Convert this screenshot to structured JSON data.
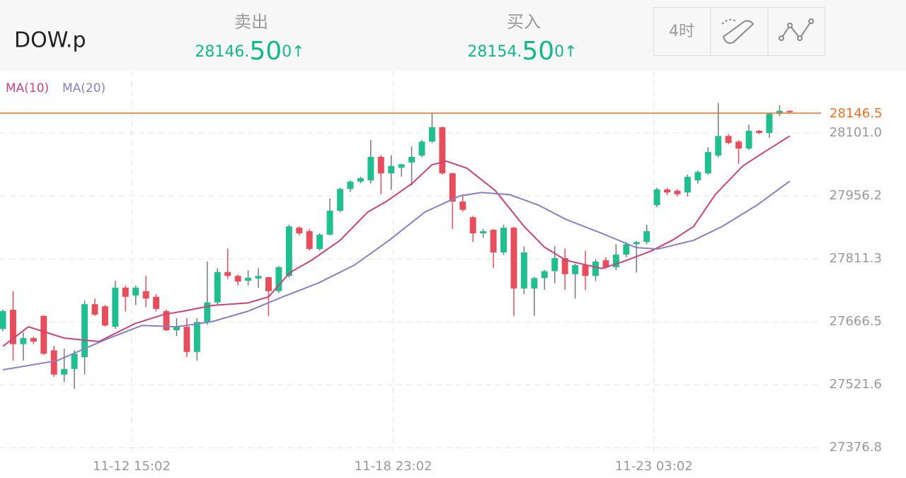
{
  "header": {
    "symbol": "DOW.p",
    "bid": {
      "label": "卖出",
      "price_head": "28146.",
      "price_big": "50",
      "price_tail": "0",
      "arrow": "↑"
    },
    "ask": {
      "label": "买入",
      "price_head": "28154.",
      "price_big": "50",
      "price_tail": "0",
      "arrow": "↑"
    },
    "timeframe": "4时"
  },
  "chart_data": {
    "type": "candlestick",
    "up_color": "#1fbf8f",
    "down_color": "#e84d5b",
    "candles": [
      {
        "o": 27650,
        "h": 27695,
        "l": 27645,
        "c": 27691
      },
      {
        "o": 27694,
        "h": 27737,
        "l": 27577,
        "c": 27615
      },
      {
        "o": 27615,
        "h": 27642,
        "l": 27577,
        "c": 27629
      },
      {
        "o": 27629,
        "h": 27632,
        "l": 27615,
        "c": 27621
      },
      {
        "o": 27680,
        "h": 27682,
        "l": 27590,
        "c": 27593
      },
      {
        "o": 27601,
        "h": 27611,
        "l": 27540,
        "c": 27545
      },
      {
        "o": 27545,
        "h": 27605,
        "l": 27528,
        "c": 27558
      },
      {
        "o": 27558,
        "h": 27601,
        "l": 27512,
        "c": 27593
      },
      {
        "o": 27585,
        "h": 27715,
        "l": 27545,
        "c": 27707
      },
      {
        "o": 27707,
        "h": 27720,
        "l": 27680,
        "c": 27683
      },
      {
        "o": 27702,
        "h": 27705,
        "l": 27655,
        "c": 27658
      },
      {
        "o": 27655,
        "h": 27761,
        "l": 27650,
        "c": 27745
      },
      {
        "o": 27745,
        "h": 27750,
        "l": 27690,
        "c": 27724
      },
      {
        "o": 27727,
        "h": 27750,
        "l": 27705,
        "c": 27745
      },
      {
        "o": 27737,
        "h": 27772,
        "l": 27700,
        "c": 27720
      },
      {
        "o": 27724,
        "h": 27730,
        "l": 27690,
        "c": 27696
      },
      {
        "o": 27691,
        "h": 27695,
        "l": 27645,
        "c": 27647
      },
      {
        "o": 27647,
        "h": 27675,
        "l": 27634,
        "c": 27655
      },
      {
        "o": 27655,
        "h": 27675,
        "l": 27585,
        "c": 27597
      },
      {
        "o": 27597,
        "h": 27675,
        "l": 27577,
        "c": 27666
      },
      {
        "o": 27666,
        "h": 27805,
        "l": 27660,
        "c": 27711
      },
      {
        "o": 27711,
        "h": 27790,
        "l": 27705,
        "c": 27781
      },
      {
        "o": 27781,
        "h": 27835,
        "l": 27765,
        "c": 27772
      },
      {
        "o": 27772,
        "h": 27775,
        "l": 27750,
        "c": 27759
      },
      {
        "o": 27761,
        "h": 27785,
        "l": 27750,
        "c": 27768
      },
      {
        "o": 27766,
        "h": 27790,
        "l": 27745,
        "c": 27772
      },
      {
        "o": 27769,
        "h": 27770,
        "l": 27680,
        "c": 27737
      },
      {
        "o": 27737,
        "h": 27795,
        "l": 27733,
        "c": 27792
      },
      {
        "o": 27772,
        "h": 27890,
        "l": 27768,
        "c": 27886
      },
      {
        "o": 27883,
        "h": 27886,
        "l": 27865,
        "c": 27870
      },
      {
        "o": 27875,
        "h": 27880,
        "l": 27830,
        "c": 27834
      },
      {
        "o": 27834,
        "h": 27870,
        "l": 27830,
        "c": 27867
      },
      {
        "o": 27867,
        "h": 27950,
        "l": 27865,
        "c": 27922
      },
      {
        "o": 27922,
        "h": 27975,
        "l": 27918,
        "c": 27972
      },
      {
        "o": 27972,
        "h": 27992,
        "l": 27965,
        "c": 27989
      },
      {
        "o": 27989,
        "h": 28000,
        "l": 27985,
        "c": 27997
      },
      {
        "o": 27992,
        "h": 28085,
        "l": 27985,
        "c": 28046
      },
      {
        "o": 28046,
        "h": 28050,
        "l": 27960,
        "c": 28008
      },
      {
        "o": 28008,
        "h": 28050,
        "l": 27970,
        "c": 28025
      },
      {
        "o": 28021,
        "h": 28030,
        "l": 28000,
        "c": 28029
      },
      {
        "o": 28033,
        "h": 28070,
        "l": 27980,
        "c": 28046
      },
      {
        "o": 28049,
        "h": 28085,
        "l": 28045,
        "c": 28081
      },
      {
        "o": 28081,
        "h": 28146,
        "l": 28078,
        "c": 28114
      },
      {
        "o": 28114,
        "h": 28116,
        "l": 28005,
        "c": 28008
      },
      {
        "o": 28008,
        "h": 28010,
        "l": 27880,
        "c": 27943
      },
      {
        "o": 27943,
        "h": 27960,
        "l": 27920,
        "c": 27924
      },
      {
        "o": 27907,
        "h": 27910,
        "l": 27850,
        "c": 27870
      },
      {
        "o": 27870,
        "h": 27880,
        "l": 27860,
        "c": 27875
      },
      {
        "o": 27878,
        "h": 27880,
        "l": 27790,
        "c": 27826
      },
      {
        "o": 27826,
        "h": 27890,
        "l": 27820,
        "c": 27883
      },
      {
        "o": 27883,
        "h": 27885,
        "l": 27680,
        "c": 27743
      },
      {
        "o": 27743,
        "h": 27840,
        "l": 27730,
        "c": 27826
      },
      {
        "o": 27743,
        "h": 27770,
        "l": 27680,
        "c": 27767
      },
      {
        "o": 27767,
        "h": 27786,
        "l": 27740,
        "c": 27783
      },
      {
        "o": 27783,
        "h": 27840,
        "l": 27755,
        "c": 27813
      },
      {
        "o": 27813,
        "h": 27835,
        "l": 27740,
        "c": 27776
      },
      {
        "o": 27776,
        "h": 27800,
        "l": 27720,
        "c": 27797
      },
      {
        "o": 27797,
        "h": 27830,
        "l": 27740,
        "c": 27772
      },
      {
        "o": 27772,
        "h": 27810,
        "l": 27760,
        "c": 27805
      },
      {
        "o": 27808,
        "h": 27815,
        "l": 27788,
        "c": 27792
      },
      {
        "o": 27792,
        "h": 27845,
        "l": 27785,
        "c": 27821
      },
      {
        "o": 27821,
        "h": 27850,
        "l": 27815,
        "c": 27845
      },
      {
        "o": 27845,
        "h": 27852,
        "l": 27780,
        "c": 27850
      },
      {
        "o": 27850,
        "h": 27890,
        "l": 27845,
        "c": 27875
      },
      {
        "o": 27935,
        "h": 27975,
        "l": 27930,
        "c": 27971
      },
      {
        "o": 27971,
        "h": 27975,
        "l": 27958,
        "c": 27964
      },
      {
        "o": 27968,
        "h": 27972,
        "l": 27955,
        "c": 27960
      },
      {
        "o": 27964,
        "h": 28005,
        "l": 27955,
        "c": 28000
      },
      {
        "o": 27992,
        "h": 28015,
        "l": 27985,
        "c": 28011
      },
      {
        "o": 28008,
        "h": 28068,
        "l": 28005,
        "c": 28057
      },
      {
        "o": 28049,
        "h": 28170,
        "l": 28045,
        "c": 28094
      },
      {
        "o": 28094,
        "h": 28098,
        "l": 28075,
        "c": 28078
      },
      {
        "o": 28081,
        "h": 28085,
        "l": 28030,
        "c": 28065
      },
      {
        "o": 28065,
        "h": 28120,
        "l": 28062,
        "c": 28106
      },
      {
        "o": 28106,
        "h": 28108,
        "l": 28098,
        "c": 28101
      },
      {
        "o": 28101,
        "h": 28147,
        "l": 28090,
        "c": 28145
      },
      {
        "o": 28145,
        "h": 28165,
        "l": 28140,
        "c": 28152
      },
      {
        "o": 28152,
        "h": 28153,
        "l": 28146,
        "c": 28150
      }
    ],
    "series": [
      {
        "name": "MA(10)",
        "color": "#c8447a",
        "x": [
          0,
          2.5,
          6,
          9.4,
          12.9,
          15.7,
          17.7,
          20.5,
          24,
          26,
          28.1,
          30.2,
          33,
          35.7,
          37.5,
          40,
          42,
          43.4,
          45.4,
          48.2,
          51,
          53,
          55.1,
          58.6,
          60.7,
          63.4,
          65.5,
          67.6,
          69.7,
          72.4,
          74.5,
          77
        ],
        "values": [
          27610,
          27655,
          27629,
          27621,
          27662,
          27683,
          27691,
          27704,
          27710,
          27724,
          27780,
          27808,
          27854,
          27919,
          27943,
          27984,
          28028,
          28036,
          28020,
          27968,
          27886,
          27838,
          27808,
          27789,
          27805,
          27829,
          27854,
          27886,
          27959,
          28025,
          28057,
          28094
        ]
      },
      {
        "name": "MA(20)",
        "color": "#8a7fc4",
        "x": [
          0,
          5.3,
          10.1,
          13.6,
          17,
          20.5,
          24,
          27.4,
          30.9,
          34.4,
          37.8,
          41.3,
          44.7,
          46.8,
          49.6,
          52.4,
          55.1,
          58.6,
          62,
          64.1,
          67.6,
          70.4,
          73.8,
          77
        ],
        "values": [
          27556,
          27577,
          27626,
          27658,
          27655,
          27667,
          27691,
          27724,
          27756,
          27797,
          27854,
          27919,
          27956,
          27964,
          27959,
          27935,
          27902,
          27870,
          27837,
          27834,
          27854,
          27886,
          27935,
          27990
        ]
      }
    ],
    "price_line": {
      "value": 28146.5,
      "color": "#f07020"
    },
    "xlim": [
      -0.28,
      80.06
    ],
    "xticks": [
      {
        "value": 12.6,
        "label": "11-12 15:02"
      },
      {
        "value": 38.2,
        "label": "11-18 23:02"
      },
      {
        "value": 63.7,
        "label": "11-23 03:02"
      }
    ],
    "ylim": [
      27365.6,
      28244.2
    ],
    "yticks": [
      {
        "value": 28101.0,
        "label": "28101.0"
      },
      27956.2,
      27811.3,
      27666.5,
      27521.6,
      27376.8
    ],
    "grid": true
  }
}
